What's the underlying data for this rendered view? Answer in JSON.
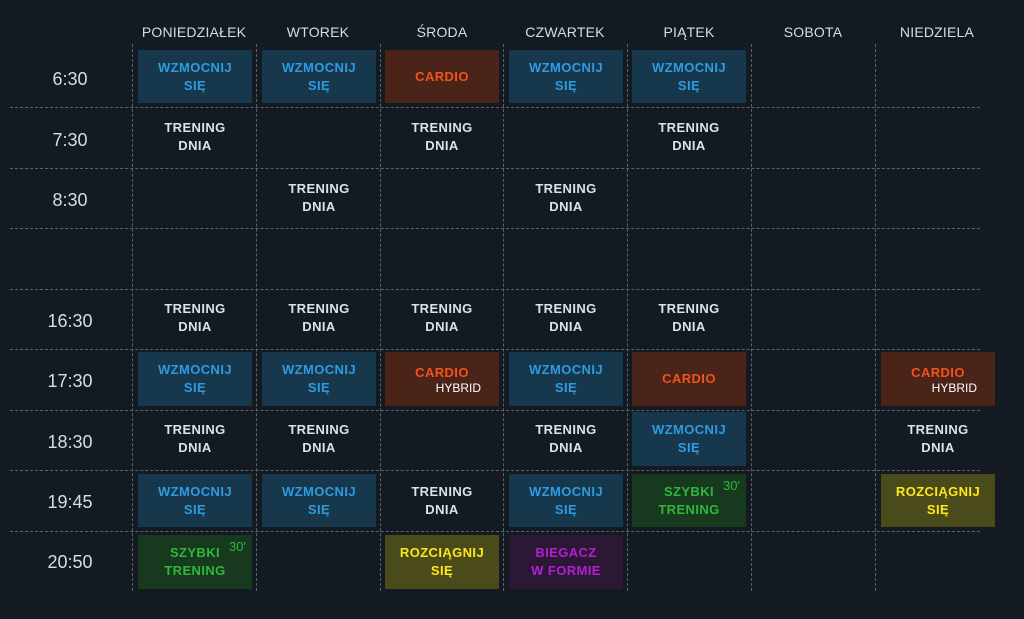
{
  "days": [
    "PONIEDZIAŁEK",
    "WTOREK",
    "ŚRODA",
    "CZWARTEK",
    "PIĄTEK",
    "SOBOTA",
    "NIEDZIELA"
  ],
  "times": [
    "6:30",
    "7:30",
    "8:30",
    "",
    "16:30",
    "17:30",
    "18:30",
    "19:45",
    "20:50"
  ],
  "activities": {
    "wzmocnij": [
      "WZMOCNIJ",
      "SIĘ"
    ],
    "trening": [
      "TRENING",
      "DNIA"
    ],
    "cardio": "CARDIO",
    "hybrid": "HYBRID",
    "szybki": [
      "SZYBKI",
      "TRENING"
    ],
    "szybki_minutes": "30'",
    "rozciagnij": [
      "ROZCIĄGNIJ",
      "SIĘ"
    ],
    "biegacz": [
      "BIEGACZ",
      "W FORMIE"
    ]
  },
  "colors": {
    "background": "#131a21",
    "wzmocnij_bg": "#17374c",
    "wzmocnij_text": "#2e9be0",
    "cardio_bg": "#4a2419",
    "cardio_text": "#f0531b",
    "szybki_bg": "#173a1e",
    "szybki_text": "#2fb73b",
    "rozciagnij_bg": "#4a4a1a",
    "rozciagnij_text": "#ffe81a",
    "biegacz_bg": "#2c1834",
    "biegacz_text": "#b11fd3"
  }
}
